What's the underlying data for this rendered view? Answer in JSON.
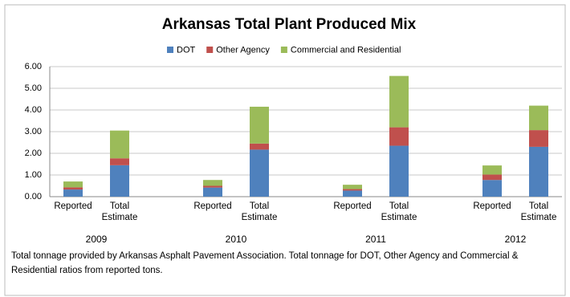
{
  "chart_data": {
    "type": "stacked_bar",
    "title": "Arkansas Total Plant Produced Mix",
    "categories": [
      "Reported",
      "Total Estimate",
      null,
      "Reported",
      "Total Estimate",
      null,
      "Reported",
      "Total Estimate",
      null,
      "Reported",
      "Total Estimate"
    ],
    "x_groups": [
      "2009",
      "2010",
      "2011",
      "2012"
    ],
    "series": [
      {
        "name": "DOT",
        "color": "#4f81bd",
        "values": [
          0.33,
          1.45,
          null,
          0.42,
          2.17,
          null,
          0.28,
          2.35,
          null,
          0.77,
          2.3
        ]
      },
      {
        "name": "Other Agency",
        "color": "#c0504d",
        "values": [
          0.1,
          0.32,
          null,
          0.08,
          0.28,
          null,
          0.07,
          0.85,
          null,
          0.25,
          0.77
        ]
      },
      {
        "name": "Commercial and Residential",
        "color": "#9bbb59",
        "values": [
          0.27,
          1.28,
          null,
          0.27,
          1.7,
          null,
          0.2,
          2.37,
          null,
          0.42,
          1.13
        ]
      }
    ],
    "ylim": [
      0,
      6
    ],
    "yticks": [
      {
        "value": 0,
        "label": "0.00"
      },
      {
        "value": 1,
        "label": "1.00"
      },
      {
        "value": 2,
        "label": "2.00"
      },
      {
        "value": 3,
        "label": "3.00"
      },
      {
        "value": 4,
        "label": "4.00"
      },
      {
        "value": 5,
        "label": "5.00"
      },
      {
        "value": 6,
        "label": "6.00"
      }
    ],
    "grid": true,
    "legend": "top",
    "note": "Total tonnage provided by Arkansas  Asphalt Pavement Association.   Total tonnage for DOT, Other Agency and Commercial & Residential ratios from reported tons."
  }
}
